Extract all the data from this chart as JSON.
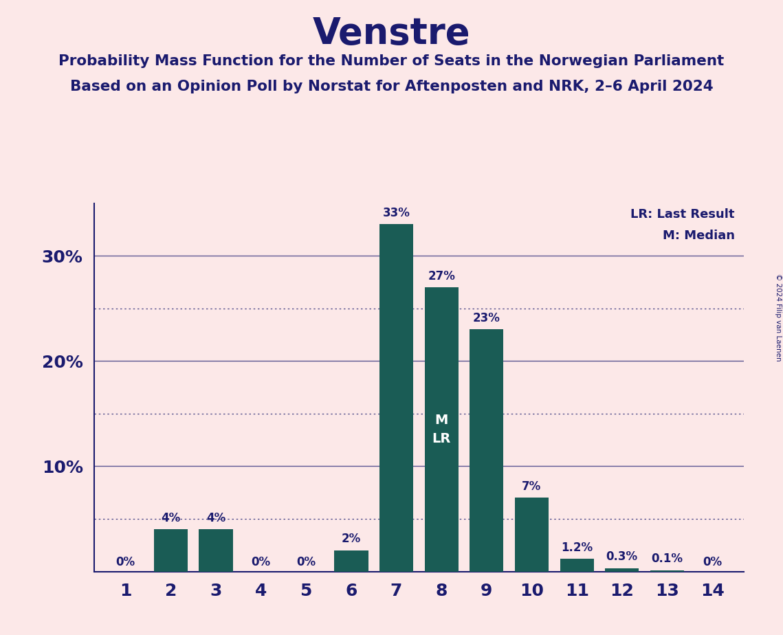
{
  "title": "Venstre",
  "subtitle1": "Probability Mass Function for the Number of Seats in the Norwegian Parliament",
  "subtitle2": "Based on an Opinion Poll by Norstat for Aftenposten and NRK, 2–6 April 2024",
  "copyright": "© 2024 Filip van Laenen",
  "legend_lr": "LR: Last Result",
  "legend_m": "M: Median",
  "categories": [
    1,
    2,
    3,
    4,
    5,
    6,
    7,
    8,
    9,
    10,
    11,
    12,
    13,
    14
  ],
  "values": [
    0.0,
    4.0,
    4.0,
    0.0,
    0.0,
    2.0,
    33.0,
    27.0,
    23.0,
    7.0,
    1.2,
    0.3,
    0.1,
    0.0
  ],
  "labels": [
    "0%",
    "4%",
    "4%",
    "0%",
    "0%",
    "2%",
    "33%",
    "27%",
    "23%",
    "7%",
    "1.2%",
    "0.3%",
    "0.1%",
    "0%"
  ],
  "bar_color": "#1a5c55",
  "background_color": "#fce8e8",
  "title_color": "#1a1a6e",
  "label_color": "#1a1a6e",
  "axis_color": "#1a1a6e",
  "median_seat": 8,
  "lr_seat": 8,
  "ylim": [
    0,
    35
  ],
  "solid_yticks": [
    10,
    20,
    30
  ],
  "dotted_gridlines": [
    5,
    15,
    25
  ],
  "solid_gridlines": [
    10,
    20,
    30
  ]
}
